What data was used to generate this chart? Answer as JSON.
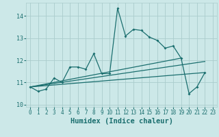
{
  "xlabel": "Humidex (Indice chaleur)",
  "bg_color": "#cce8e8",
  "grid_color": "#aacccc",
  "line_color": "#1a6e6e",
  "x_data": [
    0,
    1,
    2,
    3,
    4,
    5,
    6,
    7,
    8,
    9,
    10,
    11,
    12,
    13,
    14,
    15,
    16,
    17,
    18,
    19,
    20,
    21,
    22
  ],
  "main_line": [
    10.8,
    10.6,
    10.7,
    11.2,
    11.0,
    11.7,
    11.7,
    11.6,
    12.3,
    11.4,
    11.4,
    14.35,
    13.1,
    13.4,
    13.35,
    13.05,
    12.9,
    12.55,
    12.65,
    12.1,
    10.5,
    10.8,
    11.45
  ],
  "trend1_x": [
    0,
    19
  ],
  "trend1_y": [
    10.8,
    12.1
  ],
  "trend2_x": [
    0,
    22
  ],
  "trend2_y": [
    10.8,
    11.95
  ],
  "trend3_x": [
    0,
    22
  ],
  "trend3_y": [
    10.8,
    11.45
  ],
  "ylim": [
    9.9,
    14.6
  ],
  "xlim": [
    -0.5,
    23.5
  ],
  "xticks": [
    0,
    1,
    2,
    3,
    4,
    5,
    6,
    7,
    8,
    9,
    10,
    11,
    12,
    13,
    14,
    15,
    16,
    17,
    18,
    19,
    20,
    21,
    22,
    23
  ],
  "yticks": [
    10,
    11,
    12,
    13,
    14
  ],
  "xlabel_fontsize": 7.5
}
